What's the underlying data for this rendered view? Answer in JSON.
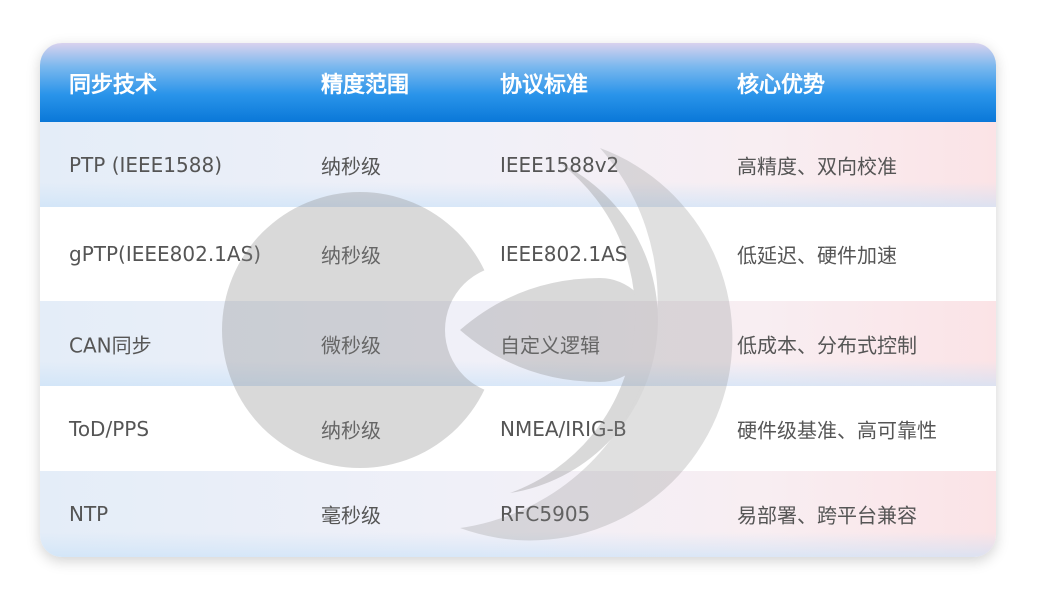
{
  "table": {
    "headers": [
      "同步技术",
      "精度范围",
      "协议标准",
      "核心优势"
    ],
    "rows": [
      [
        "PTP (IEEE1588)",
        "纳秒级",
        "IEEE1588v2",
        "高精度、双向校准"
      ],
      [
        "gPTP(IEEE802.1AS)",
        "纳秒级",
        "IEEE802.1AS",
        "低延迟、硬件加速"
      ],
      [
        "CAN同步",
        "微秒级",
        "自定义逻辑",
        "低成本、分布式控制"
      ],
      [
        "ToD/PPS",
        "纳秒级",
        "NMEA/IRIG-B",
        "硬件级基准、高可靠性"
      ],
      [
        "NTP",
        "毫秒级",
        "RFC5905",
        "易部署、跨平台兼容"
      ]
    ]
  },
  "colors": {
    "header_blue": "#0a78d8",
    "watermark_gray": "#9a9a9a"
  },
  "watermark_icon": "circular-logo-watermark"
}
